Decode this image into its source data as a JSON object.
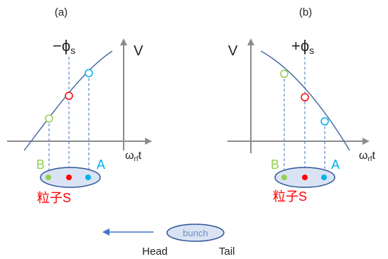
{
  "panels": [
    {
      "id": "a",
      "label": "(a)",
      "phase_label": "−ϕ",
      "phase_sub": "s",
      "v_label": "V",
      "wt_label_main": "ω",
      "wt_label_sub": "rf",
      "wt_label_tail": "t",
      "particle_b_label": "B",
      "particle_a_label": "A",
      "particle_s_label": "粒子S"
    },
    {
      "id": "b",
      "label": "(b)",
      "phase_label": "+ϕ",
      "phase_sub": "s",
      "v_label": "V",
      "wt_label_main": "ω",
      "wt_label_sub": "rf",
      "wt_label_tail": "t",
      "particle_b_label": "B",
      "particle_a_label": "A",
      "particle_s_label": "粒子S"
    }
  ],
  "bunch": {
    "label": "bunch",
    "head_label": "Head",
    "tail_label": "Tail"
  },
  "colors": {
    "curve": "#4a6fa5",
    "axis": "#8c8c8c",
    "dashed": "#4472c4",
    "particle_b": "#92d050",
    "particle_s": "#ff0000",
    "particle_a": "#00b0f0",
    "ellipse_fill": "#dae3f3",
    "ellipse_stroke": "#2f5597",
    "arrow": "#4472c4",
    "text": "#222222"
  },
  "icons": [
    "left-arrow-icon"
  ]
}
